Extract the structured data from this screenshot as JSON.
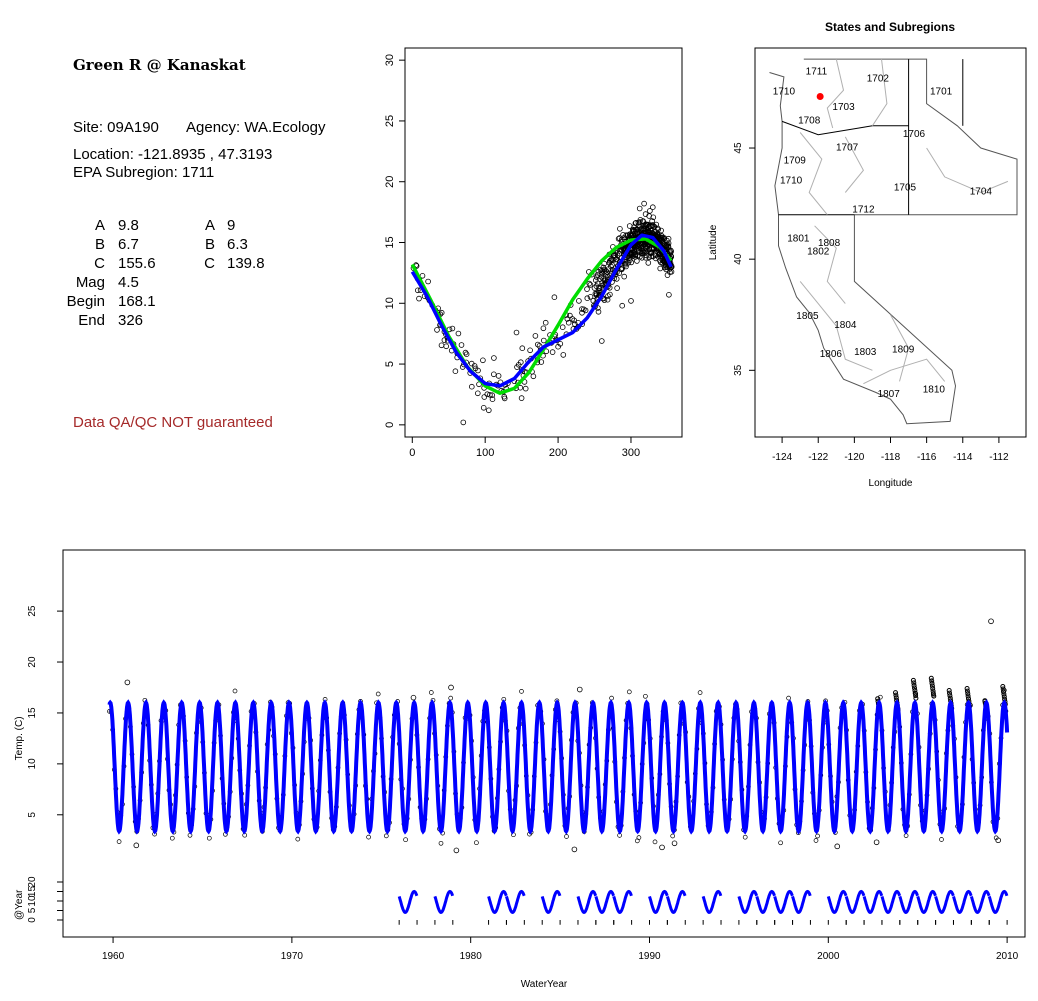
{
  "header": {
    "title": "Green R @ Kanaskat",
    "site_label": "Site: 09A190",
    "agency_label": "Agency: WA.Ecology",
    "location_label": "Location: -121.8935 , 47.3193",
    "subregion_label": "EPA Subregion: 1711",
    "qa_note": "Data QA/QC NOT guaranteed"
  },
  "params": {
    "left": [
      {
        "name": "A",
        "value": "9.8"
      },
      {
        "name": "B",
        "value": "6.7"
      },
      {
        "name": "C",
        "value": "155.6"
      },
      {
        "name": "Mag",
        "value": "4.5"
      },
      {
        "name": "Begin",
        "value": "168.1"
      },
      {
        "name": "End",
        "value": "326"
      }
    ],
    "right": [
      {
        "name": "A",
        "value": "9"
      },
      {
        "name": "B",
        "value": "6.3"
      },
      {
        "name": "C",
        "value": "139.8"
      }
    ]
  },
  "colors": {
    "obs": "#000000",
    "fit_blue": "#0000ff",
    "fit_green": "#00dd00",
    "site_point": "#ff0000",
    "boundary": "#b0b0b0",
    "qa": "#a52a2a"
  },
  "chart_data": [
    {
      "id": "seasonal",
      "type": "scatter",
      "title": "",
      "xlabel": "",
      "ylabel": "",
      "xlim": [
        -10,
        370
      ],
      "ylim": [
        -1,
        31
      ],
      "xticks": [
        0,
        100,
        200,
        300
      ],
      "yticks": [
        0,
        5,
        10,
        15,
        20,
        25,
        30
      ],
      "series": [
        {
          "type": "line",
          "color": "#00dd00",
          "points": [
            [
              0,
              13.2
            ],
            [
              25,
              10.3
            ],
            [
              50,
              7.3
            ],
            [
              75,
              4.8
            ],
            [
              100,
              3.2
            ],
            [
              120,
              2.6
            ],
            [
              140,
              3.0
            ],
            [
              160,
              4.3
            ],
            [
              180,
              6.2
            ],
            [
              200,
              8.2
            ],
            [
              220,
              10.3
            ],
            [
              240,
              12.0
            ],
            [
              260,
              13.5
            ],
            [
              280,
              14.6
            ],
            [
              300,
              15.2
            ],
            [
              320,
              15.3
            ],
            [
              340,
              14.6
            ],
            [
              355,
              13.5
            ]
          ]
        },
        {
          "type": "line",
          "color": "#0000ff",
          "points": [
            [
              0,
              12.6
            ],
            [
              20,
              10.6
            ],
            [
              40,
              8.2
            ],
            [
              60,
              6.0
            ],
            [
              80,
              4.4
            ],
            [
              100,
              3.4
            ],
            [
              120,
              3.2
            ],
            [
              140,
              3.8
            ],
            [
              160,
              5.2
            ],
            [
              180,
              6.4
            ],
            [
              200,
              7.0
            ],
            [
              220,
              7.6
            ],
            [
              240,
              8.8
            ],
            [
              260,
              10.6
            ],
            [
              280,
              12.8
            ],
            [
              300,
              14.8
            ],
            [
              315,
              15.6
            ],
            [
              330,
              15.4
            ],
            [
              345,
              14.3
            ],
            [
              355,
              13.0
            ]
          ]
        }
      ],
      "scatter": {
        "seed": 7,
        "days": [
          0,
          355
        ],
        "noise": 1.4,
        "x": [
          70,
          98,
          105,
          112,
          143,
          150,
          183,
          195,
          312,
          318,
          326,
          330,
          300,
          288,
          352,
          260
        ],
        "y": [
          0.2,
          1.4,
          1.2,
          5.5,
          7.6,
          2.2,
          8.4,
          10.5,
          17.8,
          18.2,
          17.6,
          17.9,
          10.2,
          9.8,
          10.7,
          6.9
        ]
      }
    },
    {
      "id": "map",
      "type": "map",
      "title": "States and Subregions",
      "xlabel": "Longitude",
      "ylabel": "Latitude",
      "xlim": [
        -125.5,
        -110.5
      ],
      "ylim": [
        32,
        49.5
      ],
      "xticks": [
        -124,
        -122,
        -120,
        -118,
        -116,
        -114,
        -112
      ],
      "yticks": [
        35,
        40,
        45
      ],
      "site": [
        -121.8935,
        47.3193
      ],
      "subregions": [
        {
          "label": "1711",
          "lon": -122.1,
          "lat": 48.3
        },
        {
          "label": "1710",
          "lon": -123.9,
          "lat": 47.4
        },
        {
          "label": "1702",
          "lon": -118.7,
          "lat": 48.0
        },
        {
          "label": "1701",
          "lon": -115.2,
          "lat": 47.4
        },
        {
          "label": "1703",
          "lon": -120.6,
          "lat": 46.7
        },
        {
          "label": "1708",
          "lon": -122.5,
          "lat": 46.1
        },
        {
          "label": "1706",
          "lon": -116.7,
          "lat": 45.5
        },
        {
          "label": "1707",
          "lon": -120.4,
          "lat": 44.9
        },
        {
          "label": "1709",
          "lon": -123.3,
          "lat": 44.3
        },
        {
          "label": "1710",
          "lon": -123.5,
          "lat": 43.4
        },
        {
          "label": "1705",
          "lon": -117.2,
          "lat": 43.1
        },
        {
          "label": "1704",
          "lon": -113.0,
          "lat": 42.9
        },
        {
          "label": "1712",
          "lon": -119.5,
          "lat": 42.1
        },
        {
          "label": "1801",
          "lon": -123.1,
          "lat": 40.8
        },
        {
          "label": "1808",
          "lon": -121.4,
          "lat": 40.6
        },
        {
          "label": "1802",
          "lon": -122.0,
          "lat": 40.2
        },
        {
          "label": "1805",
          "lon": -122.6,
          "lat": 37.3
        },
        {
          "label": "1804",
          "lon": -120.5,
          "lat": 36.9
        },
        {
          "label": "1806",
          "lon": -121.3,
          "lat": 35.6
        },
        {
          "label": "1803",
          "lon": -119.4,
          "lat": 35.7
        },
        {
          "label": "1809",
          "lon": -117.3,
          "lat": 35.8
        },
        {
          "label": "1807",
          "lon": -118.1,
          "lat": 33.8
        },
        {
          "label": "1810",
          "lon": -115.6,
          "lat": 34.0
        }
      ]
    },
    {
      "id": "timeseries",
      "type": "scatter",
      "title": "",
      "xlabel": "WaterYear",
      "ylabel": "Temp. (C)",
      "ylabel2": "@Year",
      "xlim": [
        1957.2,
        2011.0
      ],
      "ylim": [
        -7,
        31
      ],
      "xticks": [
        1960,
        1970,
        1980,
        1990,
        2000,
        2010
      ],
      "yticks": [
        5,
        10,
        15,
        20,
        25
      ],
      "yticks2": [
        0,
        5,
        10,
        15,
        20
      ],
      "fit": {
        "start": 1959.8,
        "end": 2010.0,
        "mean": 9.7,
        "amp": 6.3,
        "peak_phase": 0.84
      },
      "outliers": {
        "x": [
          1960.8,
          1961.3,
          1976.8,
          1978.9,
          1979.2,
          1985.8,
          1986.1,
          1990.7,
          1991.4,
          2000.5,
          2002.7,
          2009.1,
          2009.5
        ],
        "y": [
          18.0,
          2.0,
          16.5,
          17.5,
          1.5,
          1.6,
          17.3,
          1.8,
          2.2,
          1.9,
          2.3,
          24.0,
          2.5
        ]
      },
      "black_peaks": {
        "years": [
          2002,
          2003,
          2004,
          2005,
          2006,
          2007,
          2008,
          2009
        ],
        "y": [
          16.4,
          17.0,
          18.2,
          18.4,
          17.2,
          17.4,
          16.2,
          17.6
        ]
      },
      "year_groups": [
        [
          1976,
          1977
        ],
        [
          1978,
          1979
        ],
        [
          1981,
          1983
        ],
        [
          1984,
          1985
        ],
        [
          1986,
          1989
        ],
        [
          1990,
          1992
        ],
        [
          1993,
          1994
        ],
        [
          1995,
          1999
        ],
        [
          2000,
          2010
        ]
      ]
    }
  ]
}
